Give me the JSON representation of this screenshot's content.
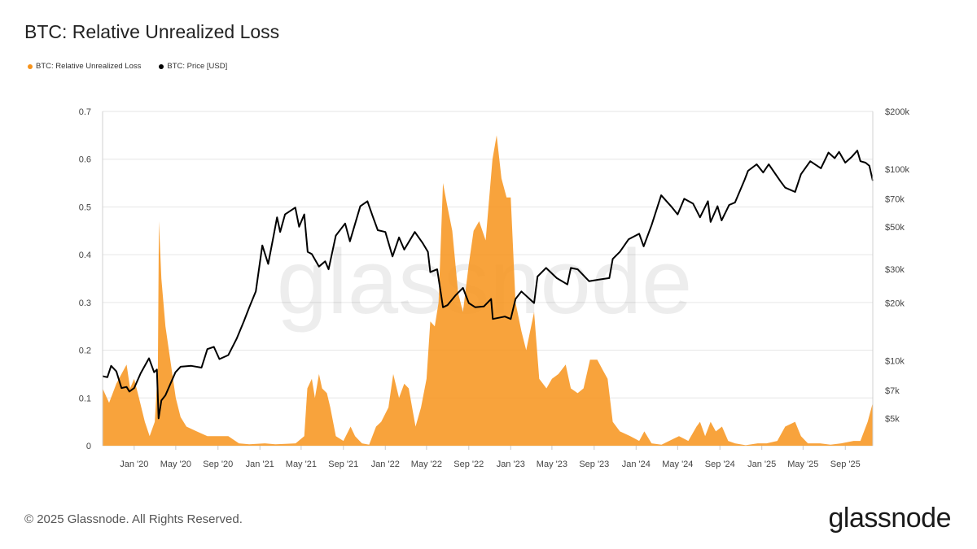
{
  "title": "BTC: Relative Unrealized Loss",
  "legend": [
    {
      "label": "BTC: Relative Unrealized Loss",
      "color": "#f7931a"
    },
    {
      "label": "BTC: Price [USD]",
      "color": "#000000"
    }
  ],
  "watermark": "glassnode",
  "footer": "© 2025 Glassnode. All Rights Reserved.",
  "brand": "glassnode",
  "chart_data": {
    "type": "area",
    "x_range": [
      "2019-10-01",
      "2025-11-20"
    ],
    "x_ticks": [
      "Jan '20",
      "May '20",
      "Sep '20",
      "Jan '21",
      "May '21",
      "Sep '21",
      "Jan '22",
      "May '22",
      "Sep '22",
      "Jan '23",
      "May '23",
      "Sep '23",
      "Jan '24",
      "May '24",
      "Sep '24",
      "Jan '25",
      "May '25",
      "Sep '25"
    ],
    "y_left": {
      "range": [
        0,
        0.7
      ],
      "ticks": [
        "0",
        "0.1",
        "0.2",
        "0.3",
        "0.4",
        "0.5",
        "0.6",
        "0.7"
      ]
    },
    "y_right": {
      "scale": "log",
      "range": [
        3600,
        200000
      ],
      "ticks": [
        {
          "label": "$5k",
          "value": 5000
        },
        {
          "label": "$7k",
          "value": 7000
        },
        {
          "label": "$10k",
          "value": 10000
        },
        {
          "label": "$20k",
          "value": 20000
        },
        {
          "label": "$30k",
          "value": 30000
        },
        {
          "label": "$50k",
          "value": 50000
        },
        {
          "label": "$70k",
          "value": 70000
        },
        {
          "label": "$100k",
          "value": 100000
        },
        {
          "label": "$200k",
          "value": 200000
        }
      ]
    },
    "grid": true,
    "legend_position": "top-left",
    "series": [
      {
        "name": "BTC: Relative Unrealized Loss",
        "type": "area",
        "color": "#f7931a",
        "axis": "left",
        "points": [
          [
            "2019-10-01",
            0.12
          ],
          [
            "2019-10-20",
            0.09
          ],
          [
            "2019-11-10",
            0.13
          ],
          [
            "2019-11-25",
            0.15
          ],
          [
            "2019-12-10",
            0.17
          ],
          [
            "2019-12-20",
            0.12
          ],
          [
            "2020-01-01",
            0.14
          ],
          [
            "2020-01-15",
            0.1
          ],
          [
            "2020-02-01",
            0.05
          ],
          [
            "2020-02-15",
            0.02
          ],
          [
            "2020-03-01",
            0.05
          ],
          [
            "2020-03-10",
            0.16
          ],
          [
            "2020-03-13",
            0.47
          ],
          [
            "2020-03-20",
            0.35
          ],
          [
            "2020-04-01",
            0.25
          ],
          [
            "2020-04-15",
            0.18
          ],
          [
            "2020-05-01",
            0.1
          ],
          [
            "2020-05-15",
            0.06
          ],
          [
            "2020-06-01",
            0.04
          ],
          [
            "2020-07-01",
            0.03
          ],
          [
            "2020-08-01",
            0.02
          ],
          [
            "2020-09-01",
            0.02
          ],
          [
            "2020-10-01",
            0.02
          ],
          [
            "2020-11-01",
            0.005
          ],
          [
            "2020-12-01",
            0.003
          ],
          [
            "2021-01-15",
            0.005
          ],
          [
            "2021-02-15",
            0.003
          ],
          [
            "2021-03-15",
            0.004
          ],
          [
            "2021-04-15",
            0.005
          ],
          [
            "2021-05-10",
            0.02
          ],
          [
            "2021-05-19",
            0.12
          ],
          [
            "2021-06-01",
            0.14
          ],
          [
            "2021-06-10",
            0.1
          ],
          [
            "2021-06-22",
            0.15
          ],
          [
            "2021-07-01",
            0.12
          ],
          [
            "2021-07-15",
            0.11
          ],
          [
            "2021-07-25",
            0.08
          ],
          [
            "2021-08-10",
            0.02
          ],
          [
            "2021-09-01",
            0.01
          ],
          [
            "2021-09-22",
            0.04
          ],
          [
            "2021-10-05",
            0.02
          ],
          [
            "2021-10-25",
            0.005
          ],
          [
            "2021-11-15",
            0.002
          ],
          [
            "2021-12-05",
            0.04
          ],
          [
            "2021-12-20",
            0.05
          ],
          [
            "2022-01-10",
            0.08
          ],
          [
            "2022-01-24",
            0.15
          ],
          [
            "2022-02-10",
            0.1
          ],
          [
            "2022-02-25",
            0.13
          ],
          [
            "2022-03-10",
            0.12
          ],
          [
            "2022-03-30",
            0.04
          ],
          [
            "2022-04-15",
            0.08
          ],
          [
            "2022-05-01",
            0.14
          ],
          [
            "2022-05-12",
            0.26
          ],
          [
            "2022-05-25",
            0.25
          ],
          [
            "2022-06-05",
            0.3
          ],
          [
            "2022-06-18",
            0.55
          ],
          [
            "2022-07-01",
            0.5
          ],
          [
            "2022-07-15",
            0.45
          ],
          [
            "2022-08-01",
            0.32
          ],
          [
            "2022-08-15",
            0.28
          ],
          [
            "2022-09-01",
            0.38
          ],
          [
            "2022-09-15",
            0.45
          ],
          [
            "2022-10-01",
            0.47
          ],
          [
            "2022-10-20",
            0.43
          ],
          [
            "2022-11-09",
            0.6
          ],
          [
            "2022-11-21",
            0.65
          ],
          [
            "2022-12-05",
            0.56
          ],
          [
            "2022-12-20",
            0.52
          ],
          [
            "2023-01-01",
            0.52
          ],
          [
            "2023-01-15",
            0.3
          ],
          [
            "2023-02-01",
            0.24
          ],
          [
            "2023-02-15",
            0.2
          ],
          [
            "2023-03-10",
            0.28
          ],
          [
            "2023-03-25",
            0.14
          ],
          [
            "2023-04-15",
            0.12
          ],
          [
            "2023-05-01",
            0.14
          ],
          [
            "2023-05-20",
            0.15
          ],
          [
            "2023-06-10",
            0.17
          ],
          [
            "2023-06-25",
            0.12
          ],
          [
            "2023-07-15",
            0.11
          ],
          [
            "2023-08-01",
            0.12
          ],
          [
            "2023-08-20",
            0.18
          ],
          [
            "2023-09-10",
            0.18
          ],
          [
            "2023-09-25",
            0.16
          ],
          [
            "2023-10-10",
            0.14
          ],
          [
            "2023-10-25",
            0.05
          ],
          [
            "2023-11-15",
            0.03
          ],
          [
            "2023-12-15",
            0.02
          ],
          [
            "2024-01-10",
            0.01
          ],
          [
            "2024-01-25",
            0.03
          ],
          [
            "2024-02-15",
            0.005
          ],
          [
            "2024-03-15",
            0.002
          ],
          [
            "2024-04-20",
            0.015
          ],
          [
            "2024-05-05",
            0.02
          ],
          [
            "2024-06-01",
            0.01
          ],
          [
            "2024-06-25",
            0.04
          ],
          [
            "2024-07-05",
            0.05
          ],
          [
            "2024-07-20",
            0.02
          ],
          [
            "2024-08-05",
            0.05
          ],
          [
            "2024-08-20",
            0.03
          ],
          [
            "2024-09-07",
            0.04
          ],
          [
            "2024-09-25",
            0.01
          ],
          [
            "2024-10-15",
            0.005
          ],
          [
            "2024-11-15",
            0.001
          ],
          [
            "2024-12-20",
            0.005
          ],
          [
            "2025-01-15",
            0.005
          ],
          [
            "2025-02-15",
            0.01
          ],
          [
            "2025-03-10",
            0.04
          ],
          [
            "2025-04-08",
            0.05
          ],
          [
            "2025-04-25",
            0.02
          ],
          [
            "2025-05-15",
            0.005
          ],
          [
            "2025-06-20",
            0.005
          ],
          [
            "2025-07-20",
            0.002
          ],
          [
            "2025-08-20",
            0.005
          ],
          [
            "2025-09-25",
            0.01
          ],
          [
            "2025-10-15",
            0.01
          ],
          [
            "2025-11-05",
            0.05
          ],
          [
            "2025-11-20",
            0.09
          ]
        ]
      },
      {
        "name": "BTC: Price [USD]",
        "type": "line",
        "color": "#000000",
        "axis": "right",
        "points": [
          [
            "2019-10-01",
            8300
          ],
          [
            "2019-10-15",
            8200
          ],
          [
            "2019-10-26",
            9400
          ],
          [
            "2019-11-10",
            8800
          ],
          [
            "2019-11-25",
            7200
          ],
          [
            "2019-12-10",
            7300
          ],
          [
            "2019-12-18",
            6900
          ],
          [
            "2020-01-01",
            7200
          ],
          [
            "2020-01-20",
            8600
          ],
          [
            "2020-02-13",
            10300
          ],
          [
            "2020-02-28",
            8700
          ],
          [
            "2020-03-07",
            9000
          ],
          [
            "2020-03-12",
            5000
          ],
          [
            "2020-03-20",
            6200
          ],
          [
            "2020-04-01",
            6600
          ],
          [
            "2020-04-30",
            8700
          ],
          [
            "2020-05-15",
            9300
          ],
          [
            "2020-06-15",
            9400
          ],
          [
            "2020-07-15",
            9200
          ],
          [
            "2020-08-01",
            11500
          ],
          [
            "2020-08-20",
            11800
          ],
          [
            "2020-09-05",
            10200
          ],
          [
            "2020-10-01",
            10700
          ],
          [
            "2020-10-25",
            13000
          ],
          [
            "2020-11-15",
            16000
          ],
          [
            "2020-12-01",
            19000
          ],
          [
            "2020-12-20",
            23000
          ],
          [
            "2021-01-08",
            40000
          ],
          [
            "2021-01-25",
            32000
          ],
          [
            "2021-02-10",
            45000
          ],
          [
            "2021-02-20",
            56000
          ],
          [
            "2021-03-01",
            47000
          ],
          [
            "2021-03-15",
            58000
          ],
          [
            "2021-04-14",
            63000
          ],
          [
            "2021-04-25",
            50000
          ],
          [
            "2021-05-10",
            58000
          ],
          [
            "2021-05-20",
            37000
          ],
          [
            "2021-06-01",
            36000
          ],
          [
            "2021-06-22",
            31000
          ],
          [
            "2021-07-10",
            33000
          ],
          [
            "2021-07-20",
            30000
          ],
          [
            "2021-08-10",
            45000
          ],
          [
            "2021-09-06",
            52000
          ],
          [
            "2021-09-20",
            42000
          ],
          [
            "2021-10-20",
            64000
          ],
          [
            "2021-11-10",
            68000
          ],
          [
            "2021-11-25",
            57000
          ],
          [
            "2021-12-10",
            48000
          ],
          [
            "2022-01-01",
            47000
          ],
          [
            "2022-01-22",
            35000
          ],
          [
            "2022-02-10",
            44000
          ],
          [
            "2022-02-25",
            38000
          ],
          [
            "2022-03-28",
            47000
          ],
          [
            "2022-04-20",
            41000
          ],
          [
            "2022-05-05",
            37000
          ],
          [
            "2022-05-12",
            29000
          ],
          [
            "2022-06-01",
            30000
          ],
          [
            "2022-06-18",
            19000
          ],
          [
            "2022-07-01",
            19500
          ],
          [
            "2022-07-25",
            22000
          ],
          [
            "2022-08-15",
            24000
          ],
          [
            "2022-09-01",
            20000
          ],
          [
            "2022-09-20",
            19000
          ],
          [
            "2022-10-15",
            19200
          ],
          [
            "2022-11-05",
            21000
          ],
          [
            "2022-11-10",
            16500
          ],
          [
            "2022-12-15",
            17000
          ],
          [
            "2023-01-01",
            16500
          ],
          [
            "2023-01-15",
            21000
          ],
          [
            "2023-02-01",
            23000
          ],
          [
            "2023-03-10",
            20000
          ],
          [
            "2023-03-20",
            27500
          ],
          [
            "2023-04-14",
            30500
          ],
          [
            "2023-05-15",
            27000
          ],
          [
            "2023-06-15",
            25000
          ],
          [
            "2023-06-25",
            30500
          ],
          [
            "2023-07-15",
            30000
          ],
          [
            "2023-08-17",
            26000
          ],
          [
            "2023-09-15",
            26500
          ],
          [
            "2023-10-15",
            27000
          ],
          [
            "2023-10-25",
            34000
          ],
          [
            "2023-11-15",
            37000
          ],
          [
            "2023-12-10",
            43000
          ],
          [
            "2024-01-10",
            46000
          ],
          [
            "2024-01-23",
            39500
          ],
          [
            "2024-02-15",
            51000
          ],
          [
            "2024-03-14",
            73000
          ],
          [
            "2024-04-15",
            63000
          ],
          [
            "2024-05-01",
            58000
          ],
          [
            "2024-05-20",
            70000
          ],
          [
            "2024-06-15",
            66000
          ],
          [
            "2024-07-05",
            56000
          ],
          [
            "2024-07-28",
            68000
          ],
          [
            "2024-08-05",
            53000
          ],
          [
            "2024-08-25",
            64000
          ],
          [
            "2024-09-06",
            54000
          ],
          [
            "2024-09-28",
            65000
          ],
          [
            "2024-10-15",
            67000
          ],
          [
            "2024-11-12",
            88000
          ],
          [
            "2024-11-22",
            98000
          ],
          [
            "2024-12-17",
            106000
          ],
          [
            "2025-01-05",
            96000
          ],
          [
            "2025-01-21",
            106000
          ],
          [
            "2025-02-25",
            86000
          ],
          [
            "2025-03-10",
            80000
          ],
          [
            "2025-04-08",
            76000
          ],
          [
            "2025-04-25",
            94000
          ],
          [
            "2025-05-22",
            110000
          ],
          [
            "2025-06-22",
            101000
          ],
          [
            "2025-07-14",
            122000
          ],
          [
            "2025-08-01",
            114000
          ],
          [
            "2025-08-14",
            123000
          ],
          [
            "2025-09-01",
            108000
          ],
          [
            "2025-09-20",
            116000
          ],
          [
            "2025-10-06",
            125000
          ],
          [
            "2025-10-15",
            110000
          ],
          [
            "2025-10-30",
            108000
          ],
          [
            "2025-11-10",
            104000
          ],
          [
            "2025-11-20",
            87000
          ]
        ]
      }
    ]
  }
}
